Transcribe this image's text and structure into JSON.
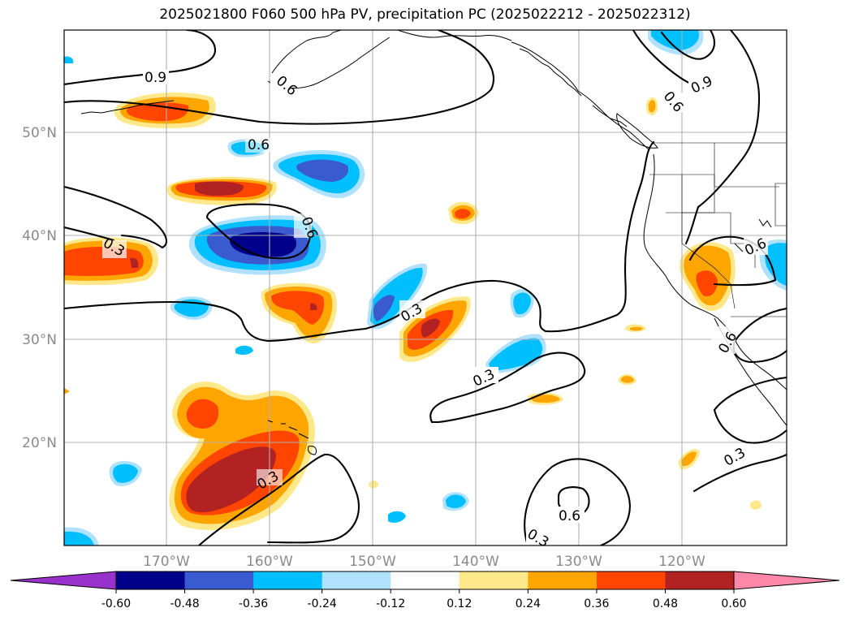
{
  "title": "2025021800 F060 500 hPa PV, precipitation PC (2025022212 - 2025022312)",
  "lat_labels": [
    "50°N",
    "40°N",
    "30°N",
    "20°N"
  ],
  "lon_labels": [
    "170°W",
    "160°W",
    "150°W",
    "140°W",
    "130°W",
    "120°W"
  ],
  "contour_labels": [
    {
      "text": "0.9"
    },
    {
      "text": "0.6"
    },
    {
      "text": "0.6"
    },
    {
      "text": "0.6"
    },
    {
      "text": "0.3"
    },
    {
      "text": "0.3"
    },
    {
      "text": "0.3"
    },
    {
      "text": "0.3"
    },
    {
      "text": "0.6"
    },
    {
      "text": "0.3"
    },
    {
      "text": "0.6"
    },
    {
      "text": "0.9"
    },
    {
      "text": "0.6"
    },
    {
      "text": "0.3"
    },
    {
      "text": "0.6"
    }
  ],
  "colorbar": {
    "tick_labels": [
      "-0.60",
      "-0.48",
      "-0.36",
      "-0.24",
      "-0.12",
      "0.12",
      "0.24",
      "0.36",
      "0.48",
      "0.60"
    ],
    "colors": [
      "#9932cc",
      "#00008b",
      "#3a5bd0",
      "#00bfff",
      "#b0e2ff",
      "#ffffff",
      "#ffe88a",
      "#ffa500",
      "#ff4500",
      "#b22222",
      "#ff88aa"
    ]
  },
  "palette": {
    "neg_strong": "#00008b",
    "neg_mid": "#3a5bd0",
    "neg": "#00bfff",
    "neg_light": "#b0e2ff",
    "pos_light": "#ffe88a",
    "pos": "#ffa500",
    "pos_mid": "#ff4500",
    "pos_strong": "#b22222",
    "grid": "#b0b0b0"
  }
}
